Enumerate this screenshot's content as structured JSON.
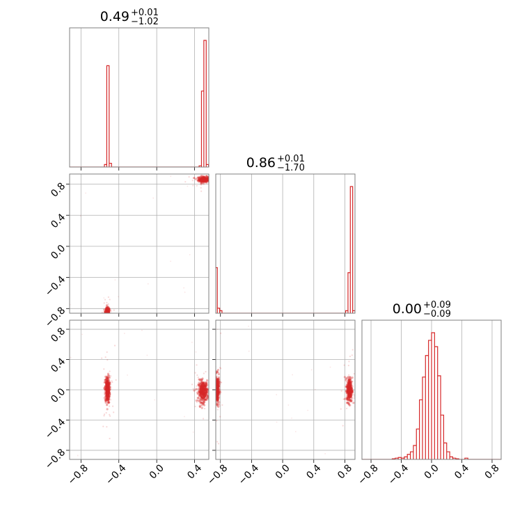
{
  "chart_data": {
    "type": "corner",
    "grid": true,
    "series_color": "#d62728",
    "tick_labels": [
      "−0.8",
      "−0.4",
      "0.0",
      "0.4",
      "0.8"
    ],
    "parameters": [
      {
        "median": "0.49",
        "plus": "+0.01",
        "minus": "−1.02",
        "range": [
          -0.92,
          0.55
        ]
      },
      {
        "median": "0.86",
        "plus": "+0.01",
        "minus": "−1.70",
        "range": [
          -0.86,
          0.93
        ]
      },
      {
        "median": "0.00",
        "plus": "+0.09",
        "minus": "−0.09",
        "range": [
          -0.92,
          0.92
        ]
      }
    ],
    "histograms": [
      {
        "param": 0,
        "bin_width": 0.025,
        "bins": [
          {
            "x": -0.54,
            "h": 0.02
          },
          {
            "x": -0.515,
            "h": 0.8
          },
          {
            "x": -0.49,
            "h": 0.03
          },
          {
            "x": 0.46,
            "h": 0.01
          },
          {
            "x": 0.485,
            "h": 0.6
          },
          {
            "x": 0.51,
            "h": 1.0
          },
          {
            "x": 0.535,
            "h": 0.02
          }
        ]
      },
      {
        "param": 1,
        "bin_width": 0.03,
        "bins": [
          {
            "x": -0.855,
            "h": 0.36
          },
          {
            "x": -0.825,
            "h": 0.04
          },
          {
            "x": -0.795,
            "h": 0.02
          },
          {
            "x": 0.825,
            "h": 0.02
          },
          {
            "x": 0.855,
            "h": 0.32
          },
          {
            "x": 0.885,
            "h": 1.0
          },
          {
            "x": 0.915,
            "h": 0.02
          }
        ]
      },
      {
        "param": 2,
        "bin_width": 0.04,
        "bins": [
          {
            "x": -0.5,
            "h": 0.005
          },
          {
            "x": -0.46,
            "h": 0.01
          },
          {
            "x": -0.42,
            "h": 0.015
          },
          {
            "x": -0.38,
            "h": 0.01
          },
          {
            "x": -0.34,
            "h": 0.02
          },
          {
            "x": -0.3,
            "h": 0.04
          },
          {
            "x": -0.26,
            "h": 0.06
          },
          {
            "x": -0.22,
            "h": 0.11
          },
          {
            "x": -0.18,
            "h": 0.24
          },
          {
            "x": -0.14,
            "h": 0.47
          },
          {
            "x": -0.1,
            "h": 0.65
          },
          {
            "x": -0.06,
            "h": 0.82
          },
          {
            "x": -0.02,
            "h": 0.94
          },
          {
            "x": 0.02,
            "h": 1.0
          },
          {
            "x": 0.06,
            "h": 0.89
          },
          {
            "x": 0.1,
            "h": 0.66
          },
          {
            "x": 0.14,
            "h": 0.35
          },
          {
            "x": 0.18,
            "h": 0.13
          },
          {
            "x": 0.22,
            "h": 0.06
          },
          {
            "x": 0.26,
            "h": 0.02
          },
          {
            "x": 0.3,
            "h": 0.01
          },
          {
            "x": 0.34,
            "h": 0.005
          },
          {
            "x": 0.46,
            "h": 0.01
          }
        ]
      }
    ],
    "scatter_panels": [
      {
        "x_param": 0,
        "y_param": 1,
        "clusters": [
          {
            "cx": 0.5,
            "cy": 0.86,
            "sx": 0.03,
            "sy": 0.018,
            "n": 260
          },
          {
            "cx": -0.52,
            "cy": -0.84,
            "sx": 0.012,
            "sy": 0.025,
            "n": 220
          }
        ]
      },
      {
        "x_param": 0,
        "y_param": 2,
        "clusters": [
          {
            "cx": -0.52,
            "cy": 0.0,
            "sx": 0.012,
            "sy": 0.09,
            "n": 300
          },
          {
            "cx": 0.49,
            "cy": -0.02,
            "sx": 0.025,
            "sy": 0.07,
            "n": 300
          }
        ]
      },
      {
        "x_param": 1,
        "y_param": 2,
        "clusters": [
          {
            "cx": -0.84,
            "cy": 0.0,
            "sx": 0.012,
            "sy": 0.09,
            "n": 260
          },
          {
            "cx": 0.86,
            "cy": 0.0,
            "sx": 0.018,
            "sy": 0.08,
            "n": 300
          }
        ]
      }
    ]
  }
}
